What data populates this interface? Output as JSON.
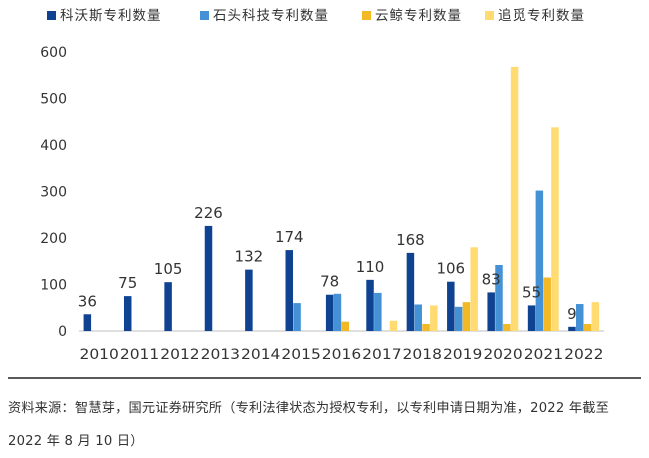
{
  "chart_data": {
    "type": "bar",
    "categories": [
      "2010",
      "2011",
      "2012",
      "2013",
      "2014",
      "2015",
      "2016",
      "2017",
      "2018",
      "2019",
      "2020",
      "2021",
      "2022"
    ],
    "series": [
      {
        "name": "科沃斯专利数量",
        "color": "#0f4291",
        "values": [
          36,
          75,
          105,
          226,
          132,
          174,
          78,
          110,
          168,
          106,
          83,
          55,
          9
        ]
      },
      {
        "name": "石头科技专利数量",
        "color": "#4591d6",
        "values": [
          0,
          0,
          0,
          0,
          0,
          60,
          80,
          82,
          57,
          52,
          142,
          302,
          58
        ]
      },
      {
        "name": "云鲸专利数量",
        "color": "#f2b826",
        "values": [
          0,
          0,
          0,
          0,
          0,
          0,
          20,
          0,
          15,
          62,
          15,
          115,
          15
        ]
      },
      {
        "name": "追觅专利数量",
        "color": "#ffdb72",
        "values": [
          0,
          0,
          0,
          0,
          0,
          0,
          0,
          22,
          55,
          180,
          568,
          438,
          62
        ]
      }
    ],
    "data_labels_series": 0,
    "ylim": [
      0,
      600
    ],
    "yticks": [
      0,
      100,
      200,
      300,
      400,
      500,
      600
    ],
    "grid": false,
    "legend_position": "top"
  },
  "source_note": "资料来源：智慧芽，国元证券研究所（专利法律状态为授权专利，以专利申请日期为准，2022 年截至 2022 年 8 月 10 日）"
}
